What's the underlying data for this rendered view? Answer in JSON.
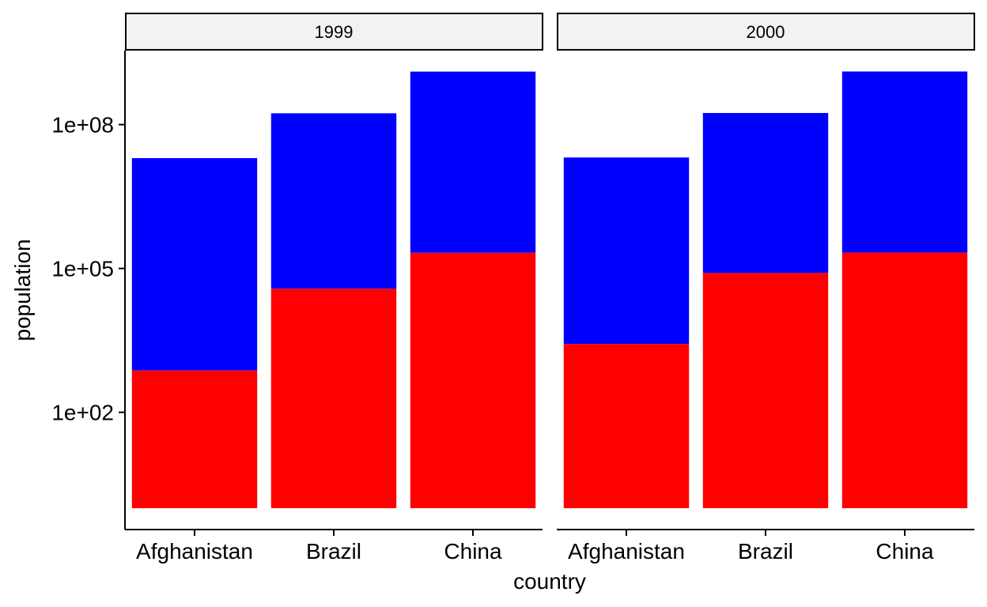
{
  "chart_data": {
    "type": "bar",
    "stacked": true,
    "xlabel": "country",
    "ylabel": "population",
    "y_scale": "log10",
    "ylim": [
      1,
      1000000000
    ],
    "y_ticks": [
      {
        "value": 100,
        "label": "1e+02"
      },
      {
        "value": 100000,
        "label": "1e+05"
      },
      {
        "value": 100000000,
        "label": "1e+08"
      }
    ],
    "categories": [
      "Afghanistan",
      "Brazil",
      "China"
    ],
    "colors": {
      "cases": "#ff0000",
      "population": "#0000ff"
    },
    "panels": [
      {
        "label": "1999",
        "cases": [
          745,
          37737,
          212258
        ],
        "population": [
          19987071,
          172006362,
          1272915272
        ]
      },
      {
        "label": "2000",
        "cases": [
          2666,
          80488,
          213766
        ],
        "population": [
          20595360,
          174504898,
          1280428583
        ]
      }
    ]
  }
}
